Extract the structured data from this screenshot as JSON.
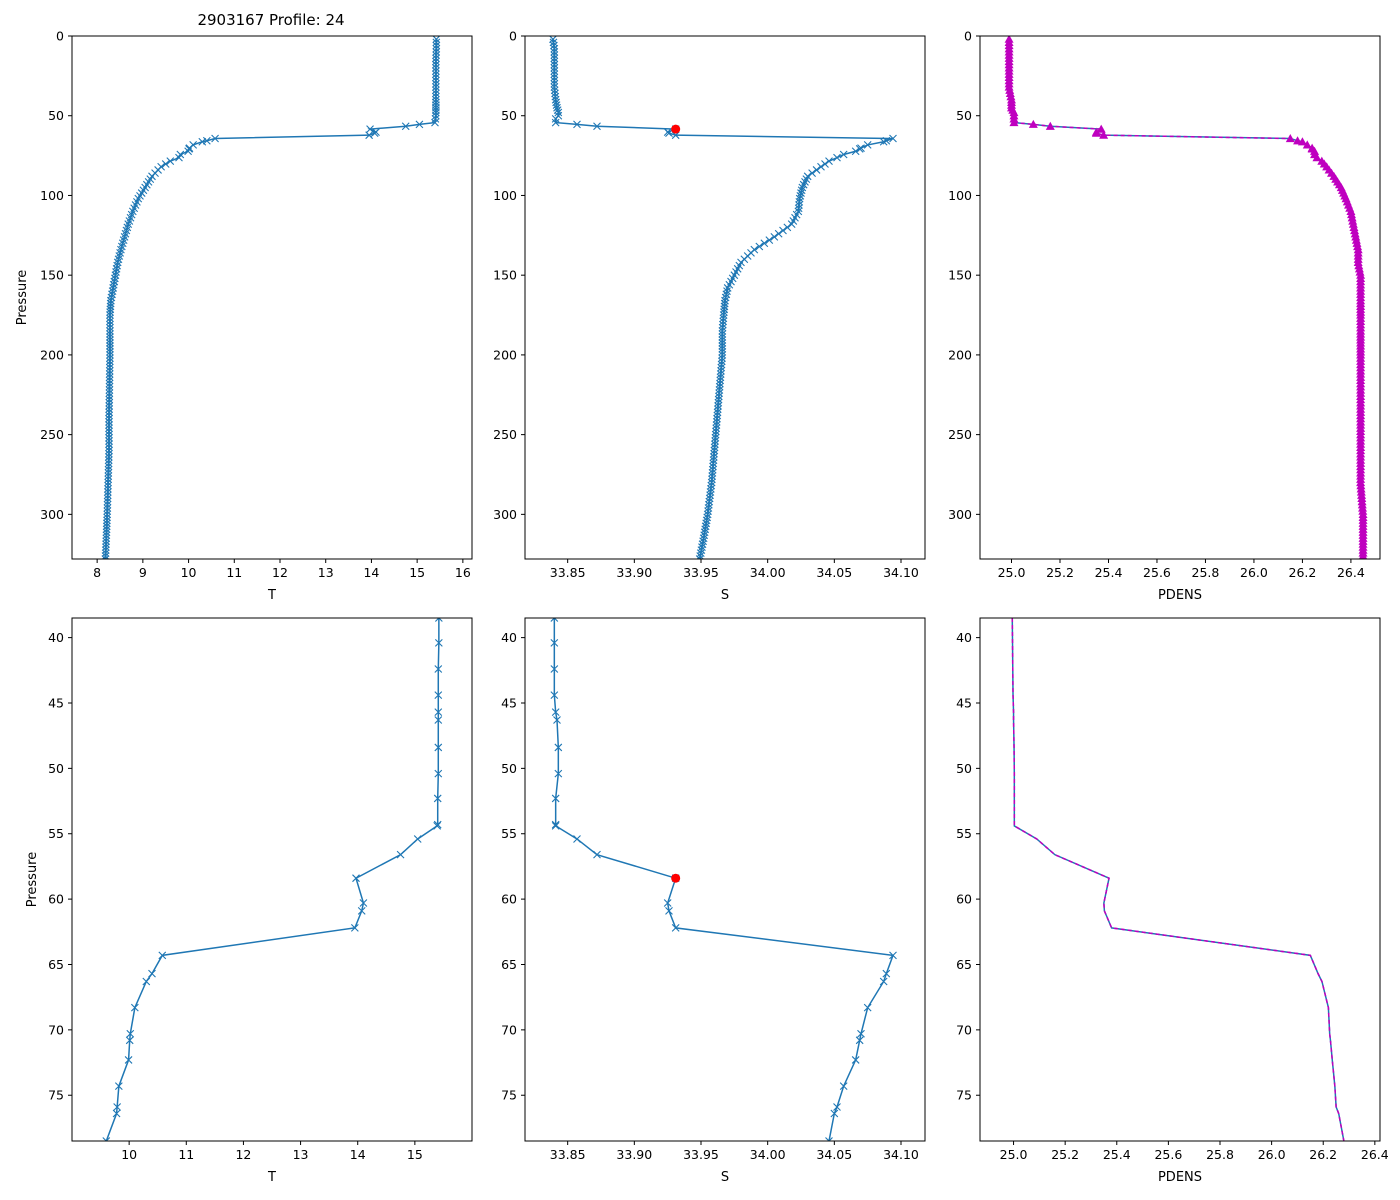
{
  "figure_title": "2903167 Profile: 24",
  "colors": {
    "line": "#1f77b4",
    "density": "#bf00bf",
    "highlight": "#ff0000",
    "axis": "#000000"
  },
  "chart_data": [
    {
      "id": "temp-full",
      "type": "line",
      "xlabel": "T",
      "ylabel": "Pressure",
      "xlim": [
        7.45,
        16.2
      ],
      "ylim": [
        328,
        0
      ],
      "y_inverted": true,
      "xticks": [
        8,
        9,
        10,
        11,
        12,
        13,
        14,
        15,
        16
      ],
      "yticks": [
        0,
        50,
        100,
        150,
        200,
        250,
        300
      ],
      "marker": "x",
      "dense_markers": true,
      "series": [
        {
          "name": "T",
          "x": [
            15.42,
            15.42,
            15.41,
            15.41,
            15.41,
            15.41,
            15.41,
            15.41,
            15.41,
            15.4,
            15.39,
            15.05,
            14.75,
            13.97,
            14.1,
            14.07,
            13.95,
            10.58,
            10.4,
            10.3,
            10.1,
            10.02,
            10.01,
            9.99,
            9.82,
            9.79,
            9.6,
            9.4,
            9.2,
            9.05,
            8.9,
            8.78,
            8.68,
            8.6,
            8.52,
            8.45,
            8.4,
            8.35,
            8.3,
            8.28,
            8.28,
            8.28,
            8.27,
            8.26,
            8.26,
            8.24,
            8.22,
            8.2,
            8.18
          ],
          "y": [
            2,
            8,
            16,
            24,
            32,
            40,
            45,
            48,
            50,
            52,
            54.3,
            55.4,
            56.6,
            58.4,
            60.3,
            60.9,
            62.2,
            64.3,
            65.7,
            66.3,
            68.3,
            70.3,
            70.8,
            72.3,
            74.3,
            76.3,
            78.5,
            82,
            88,
            95,
            102,
            110,
            118,
            126,
            134,
            142,
            150,
            158,
            166,
            175,
            185,
            200,
            220,
            240,
            260,
            280,
            300,
            315,
            328
          ]
        }
      ]
    },
    {
      "id": "sal-full",
      "type": "line",
      "xlabel": "S",
      "ylabel": "",
      "xlim": [
        33.818,
        34.118
      ],
      "ylim": [
        328,
        0
      ],
      "y_inverted": true,
      "xticks": [
        33.85,
        33.9,
        33.95,
        34.0,
        34.05,
        34.1
      ],
      "yticks": [
        0,
        50,
        100,
        150,
        200,
        250,
        300
      ],
      "marker": "x",
      "dense_markers": true,
      "highlight": {
        "x": 33.931,
        "y": 58.4
      },
      "series": [
        {
          "name": "S",
          "x": [
            33.839,
            33.84,
            33.84,
            33.84,
            33.84,
            33.841,
            33.842,
            33.843,
            33.843,
            33.841,
            33.841,
            33.857,
            33.872,
            33.931,
            33.925,
            33.926,
            33.931,
            34.094,
            34.089,
            34.087,
            34.075,
            34.07,
            34.069,
            34.066,
            34.057,
            34.052,
            34.046,
            34.04,
            34.03,
            34.026,
            34.024,
            34.023,
            34.018,
            34.005,
            33.99,
            33.98,
            33.975,
            33.97,
            33.968,
            33.967,
            33.966,
            33.966,
            33.964,
            33.962,
            33.96,
            33.958,
            33.955,
            33.952,
            33.949
          ],
          "y": [
            2,
            8,
            16,
            24,
            32,
            40,
            45,
            48,
            50,
            52,
            54.3,
            55.4,
            56.6,
            58.4,
            60.3,
            60.9,
            62.2,
            64.3,
            65.7,
            66.3,
            68.3,
            70.3,
            70.8,
            72.3,
            74.3,
            76.3,
            78.5,
            82,
            88,
            95,
            102,
            110,
            118,
            126,
            134,
            142,
            150,
            158,
            166,
            175,
            185,
            200,
            220,
            240,
            260,
            280,
            300,
            315,
            328
          ]
        }
      ]
    },
    {
      "id": "dens-full",
      "type": "line",
      "xlabel": "PDENS",
      "ylabel": "",
      "xlim": [
        24.87,
        26.52
      ],
      "ylim": [
        328,
        0
      ],
      "y_inverted": true,
      "xticks": [
        25.0,
        25.2,
        25.4,
        25.6,
        25.8,
        26.0,
        26.2,
        26.4
      ],
      "yticks": [
        0,
        50,
        100,
        150,
        200,
        250,
        300
      ],
      "marker": "triangle",
      "dense_markers": true,
      "overlay_dashed": true,
      "series": [
        {
          "name": "PDENS",
          "x": [
            24.99,
            24.99,
            24.99,
            24.99,
            24.99,
            25.0,
            25.0,
            25.01,
            25.01,
            25.01,
            25.01,
            25.09,
            25.16,
            25.37,
            25.35,
            25.35,
            25.38,
            26.15,
            26.18,
            26.2,
            26.22,
            26.24,
            26.24,
            26.25,
            26.25,
            26.26,
            26.28,
            26.3,
            26.33,
            26.36,
            26.38,
            26.4,
            26.41,
            26.42,
            26.43,
            26.43,
            26.44,
            26.44,
            26.44,
            26.44,
            26.44,
            26.44,
            26.44,
            26.44,
            26.44,
            26.44,
            26.45,
            26.45,
            26.45
          ],
          "y": [
            2,
            8,
            16,
            24,
            32,
            40,
            45,
            48,
            50,
            52,
            54.3,
            55.4,
            56.6,
            58.4,
            60.3,
            60.9,
            62.2,
            64.3,
            65.7,
            66.3,
            68.3,
            70.3,
            70.8,
            72.3,
            74.3,
            76.3,
            78.5,
            82,
            88,
            95,
            102,
            110,
            118,
            126,
            134,
            142,
            150,
            158,
            166,
            175,
            185,
            200,
            220,
            240,
            260,
            280,
            300,
            315,
            328
          ]
        }
      ]
    },
    {
      "id": "temp-zoom",
      "type": "line",
      "xlabel": "T",
      "ylabel": "Pressure",
      "xlim": [
        9.0,
        16.0
      ],
      "ylim": [
        78.5,
        38.5
      ],
      "y_inverted": true,
      "xticks": [
        10,
        11,
        12,
        13,
        14,
        15
      ],
      "yticks": [
        40,
        45,
        50,
        55,
        60,
        65,
        70,
        75
      ],
      "marker": "x",
      "series": [
        {
          "name": "T",
          "x": [
            15.42,
            15.42,
            15.41,
            15.41,
            15.41,
            15.41,
            15.41,
            15.41,
            15.4,
            15.4,
            15.39,
            15.05,
            14.75,
            13.97,
            14.1,
            14.07,
            13.95,
            10.58,
            10.4,
            10.3,
            10.1,
            10.02,
            10.01,
            9.99,
            9.82,
            9.79,
            9.78,
            9.6
          ],
          "y": [
            38.5,
            40.4,
            42.4,
            44.4,
            45.7,
            46.3,
            48.4,
            50.4,
            52.3,
            54.3,
            54.4,
            55.4,
            56.6,
            58.4,
            60.3,
            60.9,
            62.2,
            64.3,
            65.7,
            66.3,
            68.3,
            70.3,
            70.8,
            72.3,
            74.3,
            75.9,
            76.4,
            78.5
          ]
        }
      ]
    },
    {
      "id": "sal-zoom",
      "type": "line",
      "xlabel": "S",
      "ylabel": "",
      "xlim": [
        33.818,
        34.118
      ],
      "ylim": [
        78.5,
        38.5
      ],
      "y_inverted": true,
      "xticks": [
        33.85,
        33.9,
        33.95,
        34.0,
        34.05,
        34.1
      ],
      "yticks": [
        40,
        45,
        50,
        55,
        60,
        65,
        70,
        75
      ],
      "marker": "x",
      "highlight": {
        "x": 33.931,
        "y": 58.4
      },
      "series": [
        {
          "name": "S",
          "x": [
            33.84,
            33.84,
            33.84,
            33.84,
            33.841,
            33.842,
            33.843,
            33.843,
            33.841,
            33.841,
            33.841,
            33.857,
            33.872,
            33.931,
            33.925,
            33.926,
            33.931,
            34.094,
            34.089,
            34.087,
            34.075,
            34.07,
            34.069,
            34.066,
            34.057,
            34.052,
            34.05,
            34.046
          ],
          "y": [
            38.5,
            40.4,
            42.4,
            44.4,
            45.7,
            46.3,
            48.4,
            50.4,
            52.3,
            54.3,
            54.4,
            55.4,
            56.6,
            58.4,
            60.3,
            60.9,
            62.2,
            64.3,
            65.7,
            66.3,
            68.3,
            70.3,
            70.8,
            72.3,
            74.3,
            75.9,
            76.4,
            78.5
          ]
        }
      ]
    },
    {
      "id": "dens-zoom",
      "type": "line",
      "xlabel": "PDENS",
      "ylabel": "",
      "xlim": [
        24.87,
        26.42
      ],
      "ylim": [
        78.5,
        38.5
      ],
      "y_inverted": true,
      "xticks": [
        25.0,
        25.2,
        25.4,
        25.6,
        25.8,
        26.0,
        26.2,
        26.4
      ],
      "yticks": [
        40,
        45,
        50,
        55,
        60,
        65,
        70,
        75
      ],
      "marker": "none",
      "overlay_dashed": true,
      "series": [
        {
          "name": "PDENS",
          "x": [
            24.995,
            24.996,
            24.997,
            24.998,
            25.0,
            25.0,
            25.002,
            25.003,
            25.003,
            25.003,
            25.003,
            25.09,
            25.16,
            25.37,
            25.35,
            25.352,
            25.38,
            26.15,
            26.18,
            26.195,
            26.22,
            26.225,
            26.228,
            26.235,
            26.245,
            26.25,
            26.26,
            26.28
          ],
          "y": [
            38.5,
            40.4,
            42.4,
            44.4,
            45.7,
            46.3,
            48.4,
            50.4,
            52.3,
            54.3,
            54.4,
            55.4,
            56.6,
            58.4,
            60.3,
            60.9,
            62.2,
            64.3,
            65.7,
            66.3,
            68.3,
            70.3,
            70.8,
            72.3,
            74.3,
            75.9,
            76.4,
            78.5
          ]
        }
      ]
    }
  ]
}
